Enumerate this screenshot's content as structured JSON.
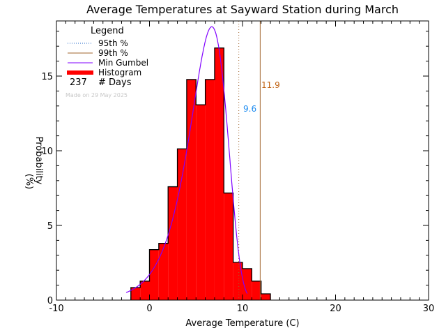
{
  "chart_data": {
    "type": "bar",
    "title": "Average Temperatures at Sayward Station during March",
    "xlabel": "Average Temperature (C)",
    "ylabel": "Probability",
    "ylabel_units": "(%)",
    "xlim": [
      -10,
      30
    ],
    "ylim": [
      0,
      19
    ],
    "x_ticks": [
      -10,
      0,
      10,
      20,
      30
    ],
    "y_ticks": [
      0,
      5,
      10,
      15
    ],
    "bin_width": 1,
    "bin_edges": [
      -2,
      -1,
      0,
      1,
      2,
      3,
      4,
      5,
      6,
      7,
      8,
      9,
      10,
      11,
      12,
      13
    ],
    "counts": [
      2,
      3,
      8,
      9,
      18,
      24,
      35,
      31,
      35,
      40,
      17,
      6,
      5,
      3,
      1
    ],
    "values": [
      0.84,
      1.27,
      3.38,
      3.8,
      7.59,
      10.13,
      14.77,
      13.08,
      14.77,
      16.88,
      7.17,
      2.53,
      2.11,
      1.27,
      0.42
    ],
    "gumbel": {
      "mu": 6.7,
      "beta": 2.01,
      "range": [
        -2.5,
        10.5
      ]
    },
    "p95": 9.6,
    "p99": 11.9,
    "p95_label": "9.6",
    "p99_label": "11.9",
    "legend": {
      "title": "Legend",
      "items": [
        "95th %",
        "99th %",
        "Min Gumbel",
        "Histogram"
      ],
      "days_count": "237",
      "days_label": "# Days",
      "made_on": "Made on 29 May 2025"
    },
    "colors": {
      "hist": "#ff0000",
      "gumbel": "#8000ff",
      "p95": "#a0642d",
      "p99": "#a0642d",
      "p95_label": "#1e8cf0",
      "p99_label": "#c06010",
      "legend_p95": "#1e64c8"
    }
  }
}
